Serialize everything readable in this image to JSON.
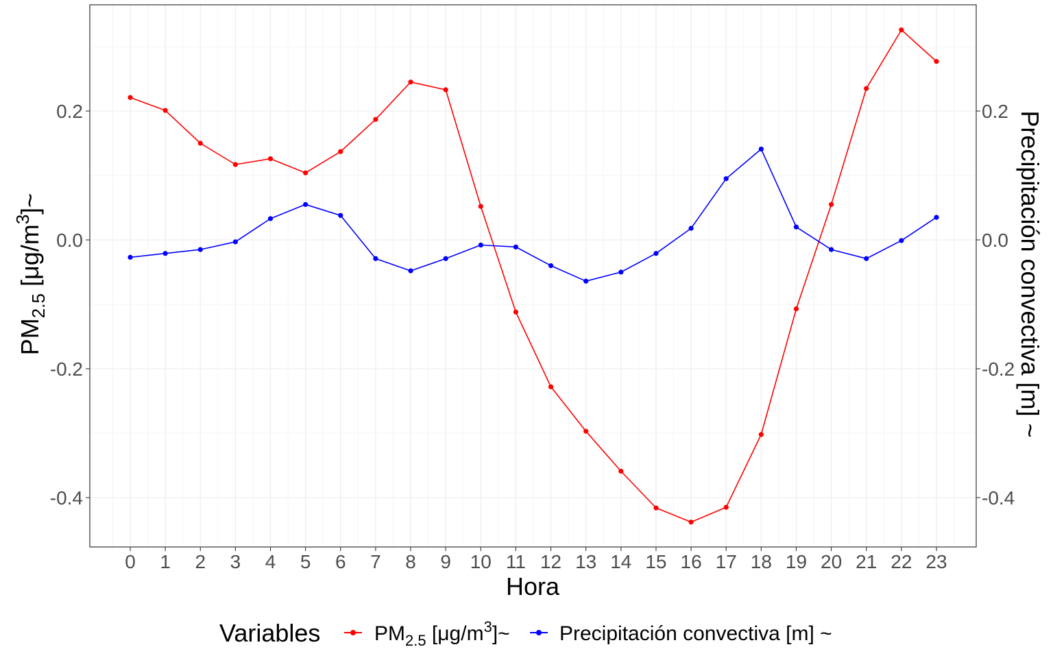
{
  "chart_data": {
    "type": "line",
    "x": [
      0,
      1,
      2,
      3,
      4,
      5,
      6,
      7,
      8,
      9,
      10,
      11,
      12,
      13,
      14,
      15,
      16,
      17,
      18,
      19,
      20,
      21,
      22,
      23
    ],
    "categories": [
      "0",
      "1",
      "2",
      "3",
      "4",
      "5",
      "6",
      "7",
      "8",
      "9",
      "10",
      "11",
      "12",
      "13",
      "14",
      "15",
      "16",
      "17",
      "18",
      "19",
      "20",
      "21",
      "22",
      "23"
    ],
    "xlabel": "Hora",
    "ylabel": {
      "base": "PM",
      "sub": "2.5",
      "pre_sup": " [μg/m",
      "sup": "3",
      "post_sup": "]~"
    },
    "y2label": "Precipitación convectiva [m] ~",
    "yticks": [
      "0.2",
      "0.0",
      "-0.2",
      "-0.4"
    ],
    "ytick_values": [
      0.2,
      0.0,
      -0.2,
      -0.4
    ],
    "ylim": [
      -0.475,
      0.365
    ],
    "grid": true,
    "legend": {
      "title": "Variables",
      "position": "bottom",
      "entries": [
        {
          "base": "PM",
          "sub": "2.5",
          "pre_sup": " [μg/m",
          "sup": "3",
          "post_sup": "]~"
        },
        {
          "text": "Precipitación convectiva [m] ~"
        }
      ]
    },
    "series": [
      {
        "name": "PM2.5 [μg/m3]~",
        "color": "#ff0000",
        "values": [
          0.221,
          0.201,
          0.15,
          0.117,
          0.126,
          0.104,
          0.137,
          0.187,
          0.245,
          0.233,
          0.052,
          -0.112,
          -0.228,
          -0.297,
          -0.359,
          -0.416,
          -0.438,
          -0.415,
          -0.302,
          -0.107,
          0.055,
          0.235,
          0.326,
          0.277
        ]
      },
      {
        "name": "Precipitación convectiva [m] ~",
        "color": "#0000ff",
        "values": [
          -0.027,
          -0.021,
          -0.015,
          -0.003,
          0.033,
          0.055,
          0.038,
          -0.029,
          -0.048,
          -0.029,
          -0.008,
          -0.011,
          -0.04,
          -0.064,
          -0.05,
          -0.021,
          0.018,
          0.095,
          0.141,
          0.02,
          -0.015,
          -0.029,
          -0.001,
          0.035
        ]
      }
    ]
  }
}
